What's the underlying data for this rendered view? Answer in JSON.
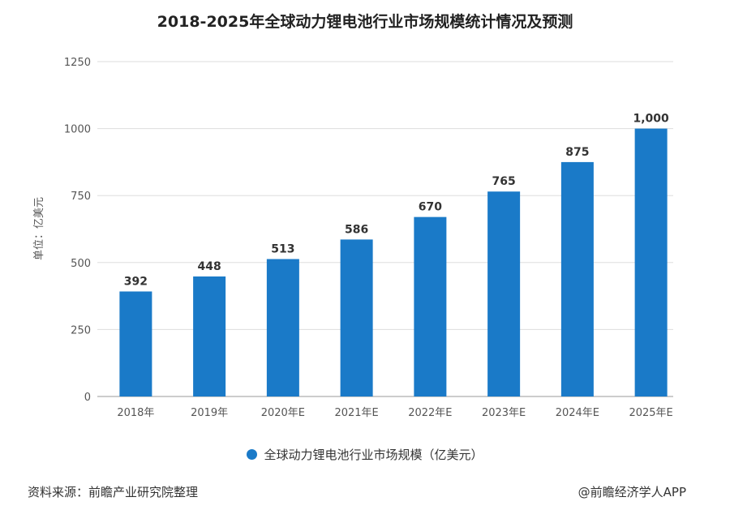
{
  "chart_data": {
    "type": "bar",
    "title": "2018-2025年全球动力锂电池行业市场规模统计情况及预测",
    "categories": [
      "2018年",
      "2019年",
      "2020年E",
      "2021年E",
      "2022年E",
      "2023年E",
      "2024年E",
      "2025年E"
    ],
    "series": [
      {
        "name": "全球动力锂电池行业市场规模（亿美元）",
        "values": [
          392,
          448,
          513,
          586,
          670,
          765,
          875,
          1000
        ]
      }
    ],
    "data_labels": [
      "392",
      "448",
      "513",
      "586",
      "670",
      "765",
      "875",
      "1,000"
    ],
    "ylabel": "单位：亿美元",
    "ylim": [
      0,
      1250
    ],
    "yticks": [
      0,
      250,
      500,
      750,
      1000,
      1250
    ],
    "grid": true,
    "legend": "bottom",
    "color": "#1a7ac8"
  },
  "footer": {
    "source": "资料来源：前瞻产业研究院整理",
    "credit": "@前瞻经济学人APP"
  }
}
